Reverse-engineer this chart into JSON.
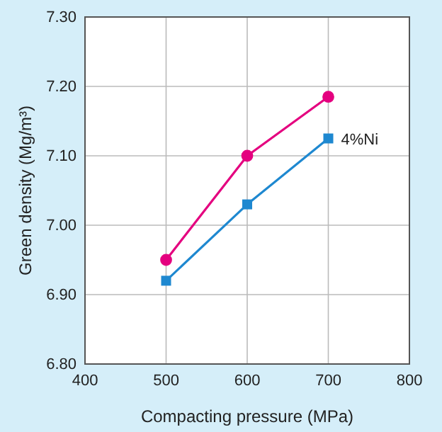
{
  "chart_data": {
    "type": "line",
    "xlabel": "Compacting pressure (MPa)",
    "ylabel": "Green density (Mg/m³)",
    "x": [
      500,
      600,
      700
    ],
    "series": [
      {
        "color": "#e4007f",
        "marker": "circle",
        "values": [
          6.95,
          7.1,
          7.185
        ]
      },
      {
        "name": "4%Ni",
        "color": "#1e88d0",
        "marker": "square",
        "values": [
          6.92,
          7.03,
          7.125
        ]
      }
    ],
    "xlim": [
      400,
      800
    ],
    "xticks": [
      400,
      500,
      600,
      700,
      800
    ],
    "ylim": [
      6.8,
      7.3
    ],
    "yticks": [
      {
        "value": 6.8,
        "label": "6.80"
      },
      {
        "value": 6.9,
        "label": "6.90"
      },
      {
        "value": 7.0,
        "label": "7.00"
      },
      {
        "value": 7.1,
        "label": "7.10"
      },
      {
        "value": 7.2,
        "label": "7.20"
      },
      {
        "value": 7.3,
        "label": "7.30"
      }
    ],
    "grid": true,
    "line_style": "solid"
  }
}
